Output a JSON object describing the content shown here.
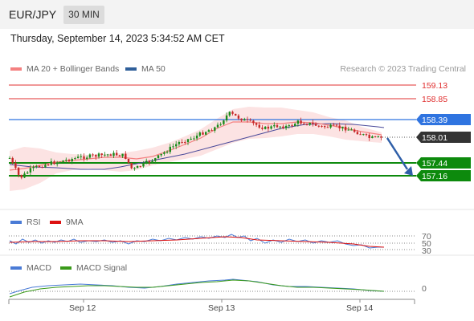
{
  "header": {
    "pair": "EUR/JPY",
    "timeframe": "30 MIN"
  },
  "timestamp": "Thursday, September 14, 2023 5:34:52 AM CET",
  "legend": {
    "main": [
      {
        "label": "MA 20 + Bollinger Bands",
        "color": "#f48080"
      },
      {
        "label": "MA 50",
        "color": "#2f5f9a"
      }
    ],
    "rsi": [
      {
        "label": "RSI",
        "color": "#4a7bd6"
      },
      {
        "label": "9MA",
        "color": "#dd1111"
      }
    ],
    "macd": [
      {
        "label": "MACD",
        "color": "#4a7bd6"
      },
      {
        "label": "MACD Signal",
        "color": "#3a9a1a"
      }
    ]
  },
  "research": "Research © 2023 Trading Central",
  "levels": [
    {
      "value": "159.13",
      "kind": "resistance",
      "color": "#e03030"
    },
    {
      "value": "158.85",
      "kind": "resistance",
      "color": "#e03030"
    },
    {
      "value": "158.39",
      "kind": "pivot",
      "color": "#2f74e0"
    },
    {
      "value": "158.01",
      "kind": "last",
      "color": "#333333"
    },
    {
      "value": "157.44",
      "kind": "support",
      "color": "#0d8a0d"
    },
    {
      "value": "157.16",
      "kind": "support",
      "color": "#0d8a0d"
    }
  ],
  "rsi_ticks": [
    "70",
    "50",
    "30"
  ],
  "macd_ticks": [
    "0"
  ],
  "x_axis": [
    "Sep 12",
    "Sep 13",
    "Sep 14"
  ]
}
